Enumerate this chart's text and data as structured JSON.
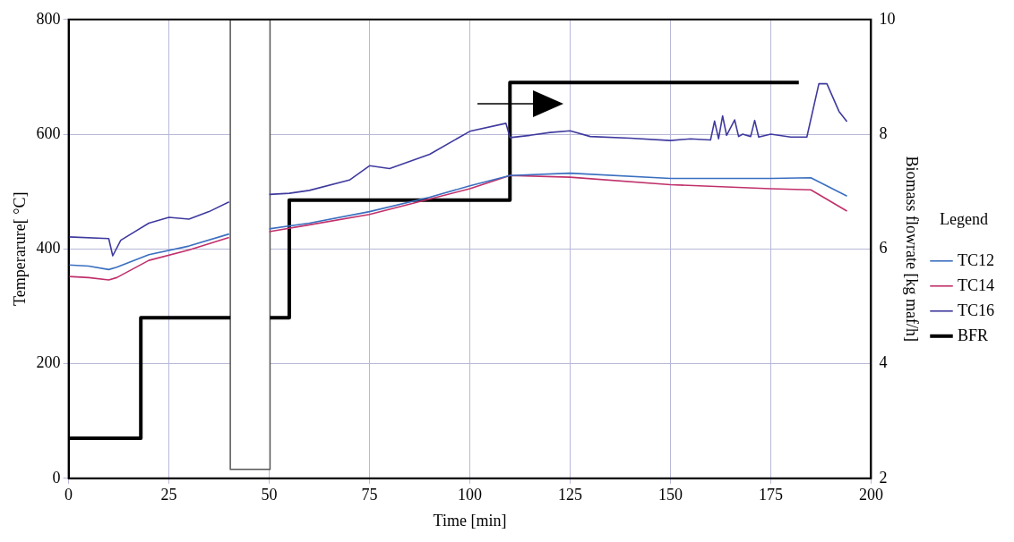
{
  "chart_data": {
    "type": "line",
    "xlabel": "Time [min]",
    "ylabel": "Temperarure[ °C]",
    "y2label": "Biomass flowrate [kg maf/h]",
    "legend_title": "Legend",
    "xlim": [
      0,
      200
    ],
    "xticks": [
      0,
      25,
      50,
      75,
      100,
      125,
      150,
      175,
      200
    ],
    "ylim": [
      0,
      800
    ],
    "yticks": [
      0,
      200,
      400,
      600,
      800
    ],
    "y2lim": [
      2,
      10
    ],
    "y2ticks": [
      2,
      4,
      6,
      8,
      10
    ],
    "grid": true,
    "legend": "right",
    "marker": "none",
    "line_style": "solid",
    "bands": [
      {
        "axis": "x",
        "from": 40.3,
        "to": 50.2,
        "color": "#ffffff"
      }
    ],
    "series": [
      {
        "name": "TC12",
        "color": "#3a6fc0",
        "x": [
          0,
          5,
          10,
          12,
          20,
          30,
          40,
          45,
          50,
          60,
          75,
          90,
          100,
          110,
          125,
          150,
          175,
          185,
          194
        ],
        "values": [
          372,
          370,
          364,
          368,
          390,
          405,
          426,
          null,
          435,
          445,
          465,
          490,
          510,
          528,
          532,
          523,
          523,
          524,
          492
        ]
      },
      {
        "name": "TC14",
        "color": "#c0306a",
        "x": [
          0,
          5,
          10,
          12,
          20,
          30,
          40,
          45,
          50,
          60,
          75,
          90,
          100,
          110,
          125,
          150,
          175,
          185,
          194
        ],
        "values": [
          352,
          350,
          346,
          350,
          380,
          398,
          420,
          null,
          430,
          442,
          460,
          487,
          505,
          528,
          525,
          512,
          505,
          503,
          466
        ]
      },
      {
        "name": "TC16",
        "color": "#3f3a9e",
        "x": [
          0,
          10,
          11,
          13,
          20,
          25,
          30,
          35,
          40,
          45,
          50,
          55,
          60,
          70,
          75,
          80,
          90,
          100,
          109,
          110,
          115,
          120,
          125,
          130,
          140,
          150,
          155,
          160,
          161,
          162,
          163,
          164,
          166,
          167,
          168,
          170,
          171,
          172,
          175,
          180,
          184,
          187,
          189,
          192,
          194
        ],
        "values": [
          421,
          418,
          388,
          415,
          445,
          455,
          452,
          465,
          482,
          null,
          495,
          497,
          502,
          520,
          545,
          540,
          565,
          605,
          619,
          594,
          598,
          603,
          606,
          596,
          593,
          589,
          592,
          590,
          623,
          592,
          632,
          598,
          625,
          596,
          600,
          596,
          624,
          595,
          600,
          595,
          595,
          688,
          688,
          640,
          622
        ]
      },
      {
        "name": "BFR",
        "type": "step",
        "axis": "y2",
        "color": "#000000",
        "x": [
          0,
          18,
          40.3,
          45,
          50.2,
          55,
          110,
          182
        ],
        "values": [
          2.7,
          4.8,
          4.8,
          null,
          4.8,
          6.85,
          8.9,
          8.9
        ]
      }
    ]
  }
}
